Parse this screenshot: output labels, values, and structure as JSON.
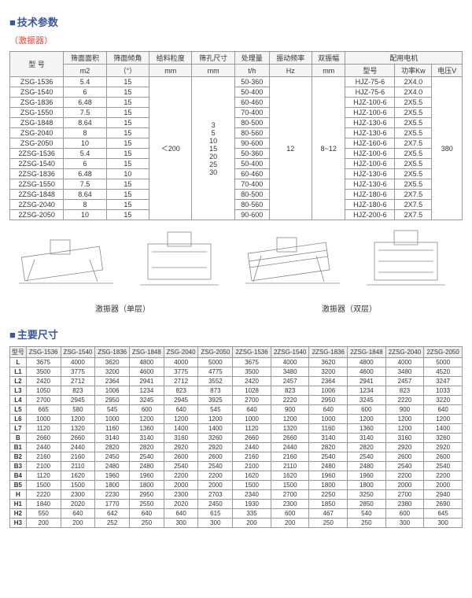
{
  "h1": "技术参数",
  "sub1": "（激振器）",
  "t1": {
    "h": [
      "型 号",
      "筛面面积",
      "筛面倾角",
      "给料粒度",
      "筛孔尺寸",
      "处理量",
      "振动频率",
      "双振幅",
      "配用电机"
    ],
    "h2": [
      "",
      "m2",
      "（°）",
      "mm",
      "mm",
      "t/h",
      "Hz",
      "mm",
      "型号",
      "功率Kw",
      "电压V"
    ],
    "rows": [
      [
        "ZSG-1536",
        "5.4",
        "15",
        "50-360",
        "HJZ-75-6",
        "2X4.0"
      ],
      [
        "ZSG-1540",
        "6",
        "15",
        "50-400",
        "HJZ-75-6",
        "2X4.0"
      ],
      [
        "ZSG-1836",
        "6.48",
        "15",
        "60-460",
        "HJZ-100-6",
        "2X5.5"
      ],
      [
        "ZSG-1550",
        "7.5",
        "15",
        "70-400",
        "HJZ-100-6",
        "2X5.5"
      ],
      [
        "ZSG-1848",
        "8.64",
        "15",
        "80-500",
        "HJZ-130-6",
        "2X5.5"
      ],
      [
        "ZSG-2040",
        "8",
        "15",
        "80-560",
        "HJZ-130-6",
        "2X5.5"
      ],
      [
        "ZSG-2050",
        "10",
        "15",
        "90-600",
        "HJZ-160-6",
        "2X7.5"
      ],
      [
        "2ZSG-1536",
        "5.4",
        "15",
        "50-360",
        "HJZ-100-6",
        "2X5.5"
      ],
      [
        "2ZSG-1540",
        "6",
        "15",
        "50-400",
        "HJZ-100-6",
        "2X5.5"
      ],
      [
        "2ZSG-1836",
        "6.48",
        "10",
        "60-460",
        "HJZ-130-6",
        "2X5.5"
      ],
      [
        "2ZSG-1550",
        "7.5",
        "15",
        "70-400",
        "HJZ-130-6",
        "2X5.5"
      ],
      [
        "2ZSG-1848",
        "8.64",
        "15",
        "80-500",
        "HJZ-180-6",
        "2X7.5"
      ],
      [
        "2ZSG-2040",
        "8",
        "15",
        "80-560",
        "HJZ-180-6",
        "2X7.5"
      ],
      [
        "2ZSG-2050",
        "10",
        "15",
        "90-600",
        "HJZ-200-6",
        "2X7.5"
      ]
    ],
    "feed": "＜200",
    "mesh": "3\n5\n10\n15\n20\n25\n30",
    "freq": "12",
    "amp": "8~12",
    "volt": "380"
  },
  "cap1": "激振器（单层）",
  "cap2": "激振器（双层）",
  "h2": "主要尺寸",
  "t2": {
    "cols": [
      "型号",
      "ZSG-1536",
      "ZSG-1540",
      "ZSG-1836",
      "ZSG-1848",
      "ZSG-2040",
      "ZSG-2050",
      "2ZSG-1536",
      "2ZSG-1540",
      "2ZSG-1836",
      "2ZSG-1848",
      "2ZSG-2040",
      "2ZSG-2050"
    ],
    "rows": [
      [
        "L",
        "3675",
        "4000",
        "3620",
        "4800",
        "4000",
        "5000",
        "3675",
        "4000",
        "3620",
        "4800",
        "4000",
        "5000"
      ],
      [
        "L1",
        "3500",
        "3775",
        "3200",
        "4600",
        "3775",
        "4775",
        "3500",
        "3480",
        "3200",
        "4600",
        "3480",
        "4520"
      ],
      [
        "L2",
        "2420",
        "2712",
        "2364",
        "2941",
        "2712",
        "3552",
        "2420",
        "2457",
        "2364",
        "2941",
        "2457",
        "3247"
      ],
      [
        "L3",
        "1050",
        "823",
        "1006",
        "1234",
        "823",
        "873",
        "1028",
        "823",
        "1006",
        "1234",
        "823",
        "1033"
      ],
      [
        "L4",
        "2700",
        "2945",
        "2950",
        "3245",
        "2945",
        "3925",
        "2700",
        "2220",
        "2950",
        "3245",
        "2220",
        "3220"
      ],
      [
        "L5",
        "665",
        "580",
        "545",
        "600",
        "640",
        "545",
        "640",
        "900",
        "640",
        "600",
        "900",
        "640"
      ],
      [
        "L6",
        "1000",
        "1200",
        "1000",
        "1200",
        "1200",
        "1200",
        "1000",
        "1200",
        "1000",
        "1200",
        "1200",
        "1200"
      ],
      [
        "L7",
        "1120",
        "1320",
        "1160",
        "1360",
        "1400",
        "1400",
        "1120",
        "1320",
        "1160",
        "1360",
        "1200",
        "1400"
      ],
      [
        "B",
        "2660",
        "2660",
        "3140",
        "3140",
        "3160",
        "3260",
        "2660",
        "2660",
        "3140",
        "3140",
        "3160",
        "3260"
      ],
      [
        "B1",
        "2440",
        "2440",
        "2820",
        "2820",
        "2920",
        "2920",
        "2440",
        "2440",
        "2820",
        "2820",
        "2920",
        "2920"
      ],
      [
        "B2",
        "2160",
        "2160",
        "2450",
        "2540",
        "2600",
        "2600",
        "2160",
        "2160",
        "2540",
        "2540",
        "2600",
        "2600"
      ],
      [
        "B3",
        "2100",
        "2110",
        "2480",
        "2480",
        "2540",
        "2540",
        "2100",
        "2110",
        "2480",
        "2480",
        "2540",
        "2540"
      ],
      [
        "B4",
        "1120",
        "1620",
        "1960",
        "1960",
        "2200",
        "2200",
        "1620",
        "1620",
        "1960",
        "1960",
        "2200",
        "2200"
      ],
      [
        "B5",
        "1500",
        "1500",
        "1800",
        "1800",
        "2000",
        "2000",
        "1500",
        "1500",
        "1800",
        "1800",
        "2000",
        "2000"
      ],
      [
        "H",
        "2220",
        "2300",
        "2230",
        "2950",
        "2300",
        "2703",
        "2340",
        "2700",
        "2250",
        "3250",
        "2700",
        "2940"
      ],
      [
        "H1",
        "1840",
        "2020",
        "1770",
        "2550",
        "2020",
        "2450",
        "1930",
        "2300",
        "1850",
        "2850",
        "2380",
        "2690"
      ],
      [
        "H2",
        "550",
        "640",
        "642",
        "640",
        "640",
        "615",
        "335",
        "600",
        "467",
        "540",
        "600",
        "645"
      ],
      [
        "H3",
        "200",
        "200",
        "252",
        "250",
        "300",
        "300",
        "200",
        "200",
        "250",
        "250",
        "300",
        "300"
      ]
    ]
  }
}
